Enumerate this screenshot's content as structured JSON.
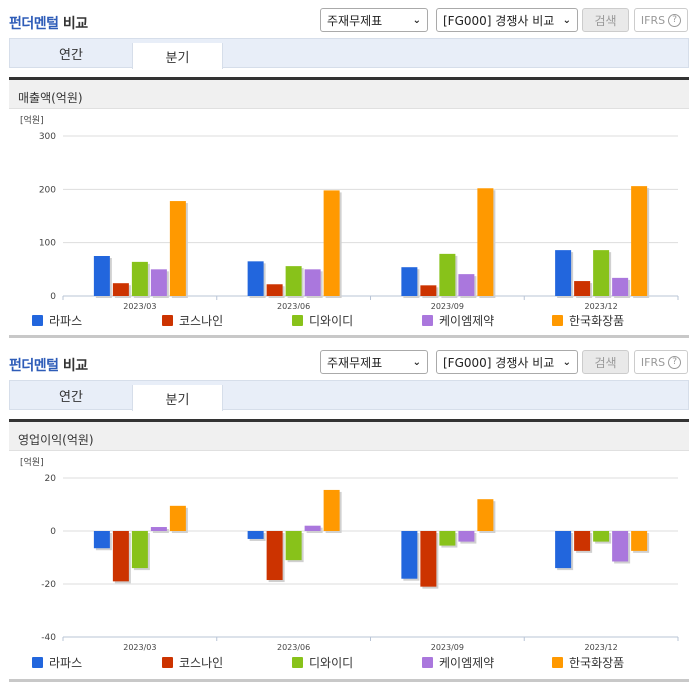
{
  "sections": [
    {
      "title_blue": "펀더멘털",
      "title_rest": " 비교",
      "select_report": "주재무제표",
      "select_compare": "[FG000] 경쟁사 비교",
      "search_label": "검색",
      "ifrs_label": "IFRS",
      "help_glyph": "?",
      "tabs": [
        {
          "label": "연간",
          "active": false
        },
        {
          "label": "분기",
          "active": true
        }
      ],
      "metric_label": "매출액(억원)",
      "unit_label": "[억원]"
    },
    {
      "title_blue": "펀더멘털",
      "title_rest": " 비교",
      "select_report": "주재무제표",
      "select_compare": "[FG000] 경쟁사 비교",
      "search_label": "검색",
      "ifrs_label": "IFRS",
      "help_glyph": "?",
      "tabs": [
        {
          "label": "연간",
          "active": false
        },
        {
          "label": "분기",
          "active": true
        }
      ],
      "metric_label": "영업이익(억원)",
      "unit_label": "[억원]"
    }
  ],
  "legend": [
    {
      "name": "라파스",
      "color": "#2266dd"
    },
    {
      "name": "코스나인",
      "color": "#cc3300"
    },
    {
      "name": "디와이디",
      "color": "#88c21a"
    },
    {
      "name": "케이엠제약",
      "color": "#aa77dd"
    },
    {
      "name": "한국화장품",
      "color": "#ff9900"
    }
  ],
  "chart_data": [
    {
      "type": "bar",
      "title": "매출액(억원)",
      "xlabel": "",
      "ylabel": "[억원]",
      "ylim": [
        0,
        300
      ],
      "yticks": [
        0,
        100,
        200,
        300
      ],
      "categories": [
        "2023/03",
        "2023/06",
        "2023/09",
        "2023/12"
      ],
      "grid": true,
      "legend_position": "bottom",
      "series": [
        {
          "name": "라파스",
          "values": [
            75,
            65,
            54,
            86
          ]
        },
        {
          "name": "코스나인",
          "values": [
            24,
            22,
            20,
            28
          ]
        },
        {
          "name": "디와이디",
          "values": [
            64,
            56,
            79,
            86
          ]
        },
        {
          "name": "케이엠제약",
          "values": [
            50,
            50,
            41,
            34
          ]
        },
        {
          "name": "한국화장품",
          "values": [
            178,
            198,
            202,
            206
          ]
        }
      ]
    },
    {
      "type": "bar",
      "title": "영업이익(억원)",
      "xlabel": "",
      "ylabel": "[억원]",
      "ylim": [
        -40,
        20
      ],
      "yticks": [
        -40,
        -20,
        0,
        20
      ],
      "categories": [
        "2023/03",
        "2023/06",
        "2023/09",
        "2023/12"
      ],
      "grid": true,
      "legend_position": "bottom",
      "series": [
        {
          "name": "라파스",
          "values": [
            -6.5,
            -3,
            -18,
            -14
          ]
        },
        {
          "name": "코스나인",
          "values": [
            -19,
            -18.5,
            -21,
            -7.5
          ]
        },
        {
          "name": "디와이디",
          "values": [
            -14,
            -11,
            -5.5,
            -4
          ]
        },
        {
          "name": "케이엠제약",
          "values": [
            1.5,
            2,
            -4,
            -11.5
          ]
        },
        {
          "name": "한국화장품",
          "values": [
            9.5,
            15.5,
            12,
            -7.5
          ]
        }
      ]
    }
  ]
}
